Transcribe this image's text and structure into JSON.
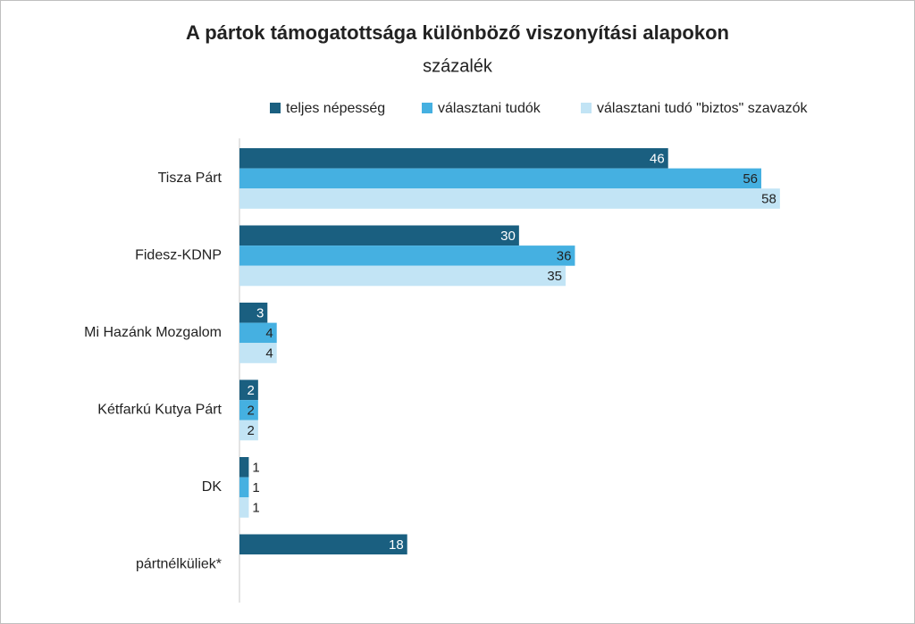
{
  "chart_data": {
    "type": "hbar",
    "title": "A pártok támogatottsága különböző viszonyítási alapokon",
    "subtitle": "százalék",
    "categories": [
      "Tisza Párt",
      "Fidesz-KDNP",
      "Mi Hazánk Mozgalom",
      "Kétfarkú Kutya Párt",
      "DK",
      "pártnélküliek*"
    ],
    "series": [
      {
        "name": "teljes népesség",
        "color": "#1a5f80",
        "values": [
          46,
          30,
          3,
          2,
          1,
          18
        ]
      },
      {
        "name": "választani tudók",
        "color": "#45b0e1",
        "values": [
          56,
          36,
          4,
          2,
          1,
          null
        ]
      },
      {
        "name": "választani tudó \"biztos\" szavazók",
        "color": "#c2e4f5",
        "values": [
          58,
          35,
          4,
          2,
          1,
          null
        ]
      }
    ],
    "xlim": [
      0,
      70
    ]
  }
}
